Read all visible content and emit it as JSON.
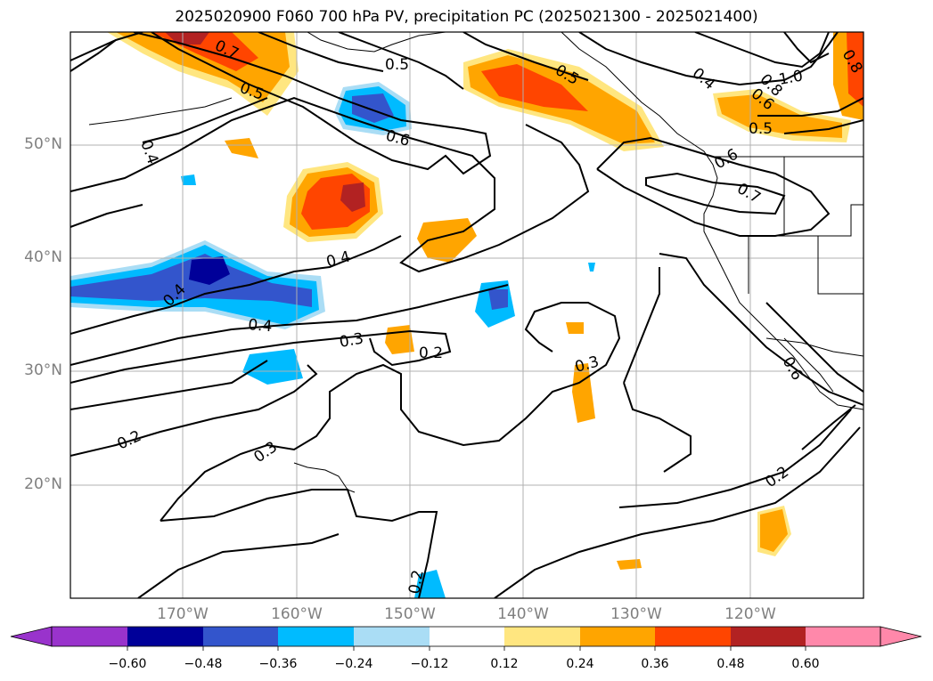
{
  "title": "2025020900 F060 700 hPa PV, precipitation PC (2025021300 - 2025021400)",
  "lat_labels": [
    "50°N",
    "40°N",
    "30°N",
    "20°N"
  ],
  "lon_labels": [
    "170°W",
    "160°W",
    "150°W",
    "140°W",
    "130°W",
    "120°W"
  ],
  "contour_labels": [
    "0.7",
    "0.5",
    "0.5",
    "0.5",
    "0.4",
    "0.6",
    "0.8",
    "1.0",
    "0.6",
    "0.8",
    "0.5",
    "0.4",
    "0.6",
    "0.7",
    "0.4",
    "0.4",
    "0.4",
    "0.3",
    "0.2",
    "0.3",
    "0.6",
    "0.2",
    "0.3",
    "0.2",
    "0.2"
  ],
  "colorbar": {
    "ticks": [
      "−0.60",
      "−0.48",
      "−0.36",
      "−0.24",
      "−0.12",
      "0.12",
      "0.24",
      "0.36",
      "0.48",
      "0.60"
    ],
    "colors": [
      "#9933cc",
      "#000099",
      "#3355cc",
      "#00bbff",
      "#aaddf5",
      "#ffffff",
      "#ffe680",
      "#ffa500",
      "#ff4500",
      "#b22222",
      "#ff88aa"
    ]
  }
}
